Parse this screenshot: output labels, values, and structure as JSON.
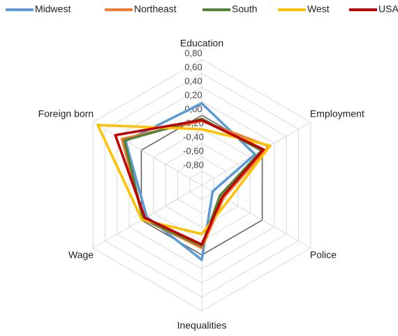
{
  "chart_data": {
    "type": "radar",
    "categories": [
      "Education",
      "Employment",
      "Police",
      "Inequalities",
      "Wage",
      "Foreign born"
    ],
    "ylim": [
      -1,
      0.8
    ],
    "yticks": [
      {
        "value": -0.8,
        "label": "-0,80"
      },
      {
        "value": -0.6,
        "label": "-0,60"
      },
      {
        "value": -0.4,
        "label": "-0,40"
      },
      {
        "value": -0.2,
        "label": "-0,20"
      },
      {
        "value": 0,
        "label": "0,00"
      },
      {
        "value": 0.2,
        "label": "0,20"
      },
      {
        "value": 0.4,
        "label": "0,40"
      },
      {
        "value": 0.6,
        "label": "0,60"
      },
      {
        "value": 0.8,
        "label": "0,80"
      }
    ],
    "grid": true,
    "legend": "top",
    "series": [
      {
        "name": "Midwest",
        "color": "#5b9bd5",
        "values": [
          0.17,
          -0.12,
          -0.82,
          0.07,
          -0.09,
          0.26
        ]
      },
      {
        "name": "Northeast",
        "color": "#ed7d31",
        "values": [
          -0.08,
          0.11,
          -0.64,
          -0.1,
          -0.03,
          0.32
        ]
      },
      {
        "name": "South",
        "color": "#548235",
        "values": [
          -0.05,
          -0.01,
          -0.7,
          -0.13,
          -0.03,
          0.28
        ]
      },
      {
        "name": "West",
        "color": "#ffc000",
        "values": [
          -0.2,
          0.13,
          -0.56,
          -0.3,
          -0.01,
          0.72
        ]
      },
      {
        "name": "USA",
        "color": "#c00000",
        "values": [
          -0.07,
          0.02,
          -0.66,
          -0.15,
          -0.06,
          0.43
        ]
      }
    ]
  }
}
